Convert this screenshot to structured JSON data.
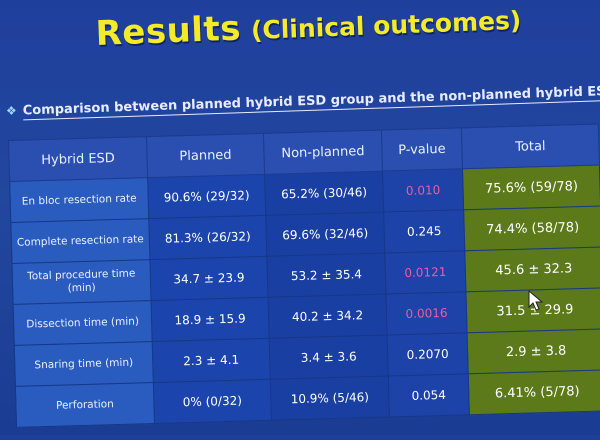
{
  "slide": {
    "title_main": "Results",
    "title_sub": "(Clinical outcomes)",
    "subtitle": "Comparison between planned hybrid ESD group and the non-planned hybrid ESD group"
  },
  "table": {
    "headers": [
      "Hybrid ESD",
      "Planned",
      "Non-planned",
      "P-value",
      "Total"
    ],
    "rows": [
      {
        "label": "En bloc resection rate",
        "planned": "90.6% (29/32)",
        "nonplanned": "65.2% (30/46)",
        "pvalue": "0.010",
        "total": "75.6% (59/78)",
        "significant": true
      },
      {
        "label": "Complete resection rate",
        "planned": "81.3% (26/32)",
        "nonplanned": "69.6% (32/46)",
        "pvalue": "0.245",
        "total": "74.4% (58/78)",
        "significant": false
      },
      {
        "label": "Total procedure time (min)",
        "planned": "34.7 ± 23.9",
        "nonplanned": "53.2 ± 35.4",
        "pvalue": "0.0121",
        "total": "45.6 ± 32.3",
        "significant": true
      },
      {
        "label": "Dissection time (min)",
        "planned": "18.9 ± 15.9",
        "nonplanned": "40.2 ± 34.2",
        "pvalue": "0.0016",
        "total": "31.5 ± 29.9",
        "significant": true
      },
      {
        "label": "Snaring time (min)",
        "planned": "2.3 ± 4.1",
        "nonplanned": "3.4 ± 3.6",
        "pvalue": "0.2070",
        "total": "2.9 ± 3.8",
        "significant": false
      },
      {
        "label": "Perforation",
        "planned": "0% (0/32)",
        "nonplanned": "10.9% (5/46)",
        "pvalue": "0.054",
        "total": "6.41% (5/78)",
        "significant": false
      }
    ]
  },
  "colors": {
    "background": "#1f3f9c",
    "title": "#f3ea2a",
    "significant_pvalue": "#f05aa0",
    "total_column": "#5c7a1a"
  }
}
